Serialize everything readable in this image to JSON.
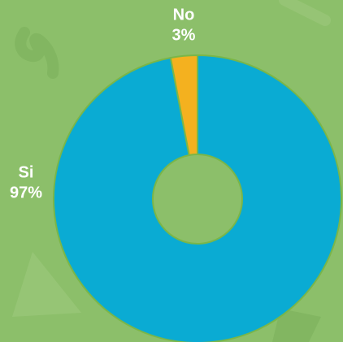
{
  "chart_data": {
    "type": "pie",
    "categories": [
      "Si",
      "No"
    ],
    "values": [
      97,
      3
    ],
    "value_labels": [
      "97%",
      "3%"
    ],
    "colors": [
      "#0aabd3",
      "#f4b11f"
    ],
    "donut": true
  }
}
